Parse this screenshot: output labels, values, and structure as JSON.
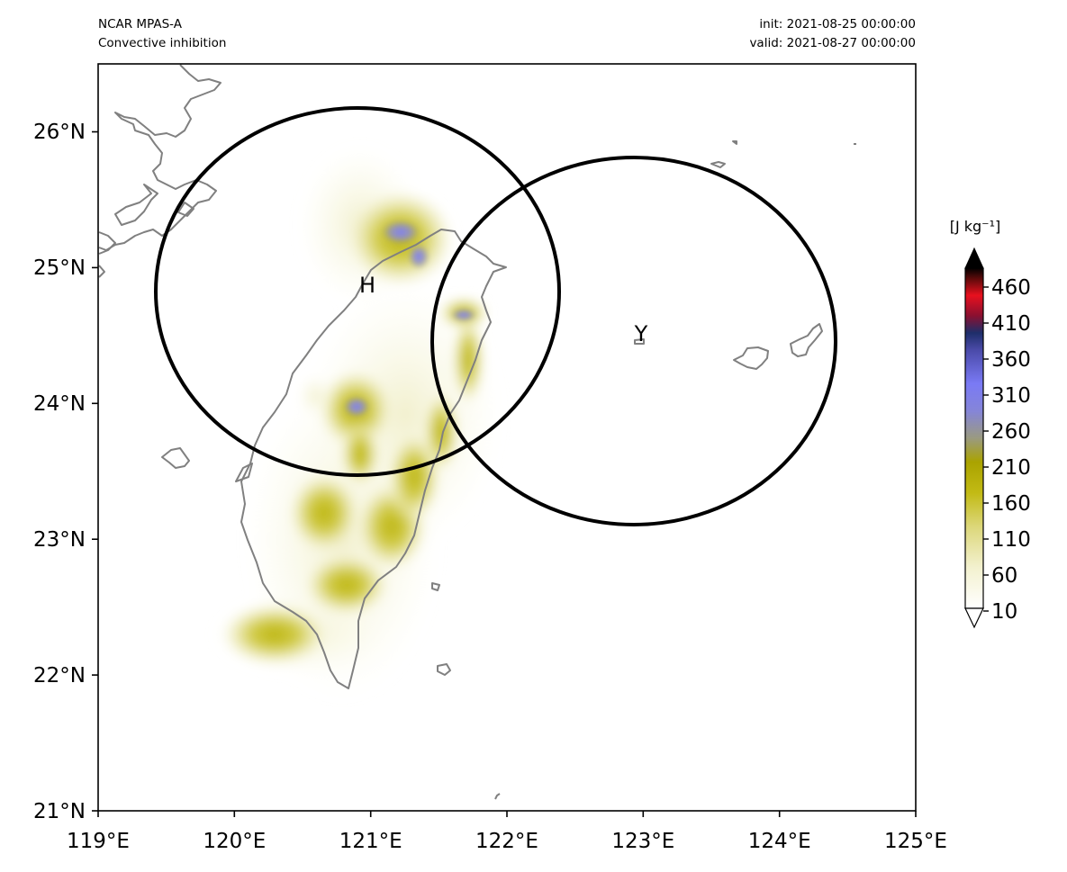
{
  "header": {
    "model": "NCAR MPAS-A",
    "field": "Convective inhibition",
    "init": "init: 2021-08-25 00:00:00",
    "valid": "valid: 2021-08-27 00:00:00"
  },
  "axes": {
    "x_ticks": [
      "119°E",
      "120°E",
      "121°E",
      "122°E",
      "123°E",
      "124°E",
      "125°E"
    ],
    "x_values": [
      119,
      120,
      121,
      122,
      123,
      124,
      125
    ],
    "y_ticks": [
      "21°N",
      "22°N",
      "23°N",
      "24°N",
      "25°N",
      "26°N"
    ],
    "y_values": [
      21,
      22,
      23,
      24,
      25,
      26
    ],
    "lon_range": [
      119,
      125
    ],
    "lat_range": [
      21,
      26.5
    ]
  },
  "colorbar": {
    "unit_label": "[J kg⁻¹]",
    "ticks": [
      "10",
      "60",
      "110",
      "160",
      "210",
      "260",
      "310",
      "360",
      "410",
      "460"
    ],
    "tick_values": [
      10,
      60,
      110,
      160,
      210,
      260,
      310,
      360,
      410,
      460
    ],
    "range": [
      10,
      500
    ],
    "extend": "both"
  },
  "circles": [
    {
      "label": "H",
      "center_lon": 120.9,
      "center_lat": 24.83
    },
    {
      "label": "Y",
      "center_lon": 122.93,
      "center_lat": 24.46
    }
  ],
  "colors": {
    "coastline": "#808080",
    "low": "#fbfbea",
    "mid": "#bdb405",
    "high": "#7f7ff7",
    "max": "#e8101e"
  }
}
